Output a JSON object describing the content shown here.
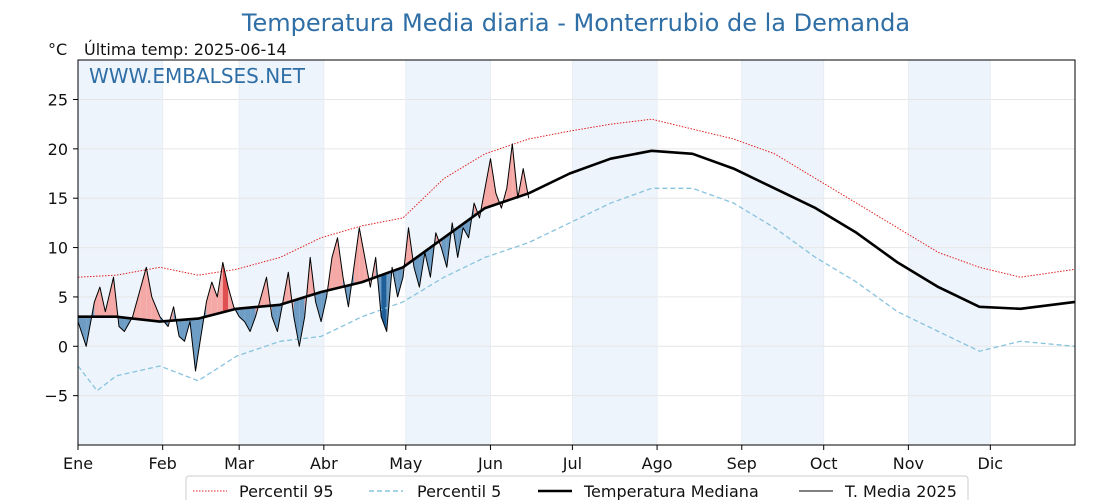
{
  "title": "Temperatura Media diaria - Monterrubio de la Demanda",
  "unit_label": "°C",
  "last_temp": "Última temp: 2025-06-14",
  "watermark": "WWW.EMBALSES.NET",
  "legend": {
    "p95": "Percentil 95",
    "p5": "Percentil 5",
    "median": "Temperatura Mediana",
    "current": "T. Media 2025"
  },
  "chart_data": {
    "type": "line",
    "x": {
      "label": "",
      "ticks": [
        "Ene",
        "Feb",
        "Mar",
        "Abr",
        "May",
        "Jun",
        "Jul",
        "Ago",
        "Sep",
        "Oct",
        "Nov",
        "Dic"
      ],
      "tick_days": [
        1,
        32,
        60,
        91,
        121,
        152,
        182,
        213,
        244,
        274,
        305,
        335
      ],
      "range_days": [
        1,
        366
      ]
    },
    "y": {
      "label": "",
      "ticks": [
        -5,
        0,
        5,
        10,
        15,
        20,
        25
      ],
      "tick_labels": [
        "−5",
        "0",
        "5",
        "10",
        "15",
        "20",
        "25"
      ],
      "lim": [
        -10,
        29
      ]
    },
    "grid": true,
    "legend_position": "bottom-center",
    "shaded_month_bands": [
      "Ene",
      "Mar",
      "May",
      "Jul",
      "Sep",
      "Nov"
    ],
    "colors": {
      "p95": "#e02020",
      "p5": "#88c3de",
      "median": "#000000",
      "current": "#000000",
      "above_fill": "#f4a9a6",
      "above_fill_strong": "#e05050",
      "below_fill": "#6d9dc5",
      "below_fill_strong": "#1f5f99",
      "band": "#eef4fb"
    },
    "series": [
      {
        "name": "Percentil 95",
        "style": "dotted",
        "points": [
          [
            1,
            7.0
          ],
          [
            15,
            7.2
          ],
          [
            31,
            8.0
          ],
          [
            45,
            7.2
          ],
          [
            59,
            7.8
          ],
          [
            75,
            9.0
          ],
          [
            90,
            11.0
          ],
          [
            105,
            12.2
          ],
          [
            120,
            13.0
          ],
          [
            135,
            17.0
          ],
          [
            150,
            19.5
          ],
          [
            166,
            21.0
          ],
          [
            181,
            21.8
          ],
          [
            196,
            22.5
          ],
          [
            211,
            23.0
          ],
          [
            226,
            22.0
          ],
          [
            241,
            21.0
          ],
          [
            256,
            19.5
          ],
          [
            271,
            17.0
          ],
          [
            286,
            14.5
          ],
          [
            301,
            12.0
          ],
          [
            316,
            9.5
          ],
          [
            331,
            8.0
          ],
          [
            346,
            7.0
          ],
          [
            366,
            7.8
          ]
        ]
      },
      {
        "name": "Percentil 5",
        "style": "dashed",
        "points": [
          [
            1,
            -2.0
          ],
          [
            8,
            -4.5
          ],
          [
            15,
            -3.0
          ],
          [
            31,
            -2.0
          ],
          [
            45,
            -3.5
          ],
          [
            59,
            -1.0
          ],
          [
            75,
            0.5
          ],
          [
            90,
            1.0
          ],
          [
            105,
            3.0
          ],
          [
            120,
            4.5
          ],
          [
            135,
            7.0
          ],
          [
            150,
            9.0
          ],
          [
            166,
            10.5
          ],
          [
            181,
            12.5
          ],
          [
            196,
            14.5
          ],
          [
            211,
            16.0
          ],
          [
            226,
            16.0
          ],
          [
            241,
            14.5
          ],
          [
            256,
            12.0
          ],
          [
            271,
            9.0
          ],
          [
            286,
            6.5
          ],
          [
            301,
            3.5
          ],
          [
            316,
            1.5
          ],
          [
            331,
            -0.5
          ],
          [
            346,
            0.5
          ],
          [
            366,
            0.0
          ]
        ]
      },
      {
        "name": "Temperatura Mediana",
        "style": "solid-thick",
        "points": [
          [
            1,
            3.0
          ],
          [
            15,
            3.0
          ],
          [
            31,
            2.5
          ],
          [
            45,
            2.8
          ],
          [
            59,
            3.8
          ],
          [
            75,
            4.2
          ],
          [
            90,
            5.5
          ],
          [
            105,
            6.5
          ],
          [
            120,
            8.0
          ],
          [
            135,
            11.0
          ],
          [
            150,
            14.0
          ],
          [
            166,
            15.5
          ],
          [
            181,
            17.5
          ],
          [
            196,
            19.0
          ],
          [
            211,
            19.8
          ],
          [
            226,
            19.5
          ],
          [
            241,
            18.0
          ],
          [
            256,
            16.0
          ],
          [
            271,
            14.0
          ],
          [
            286,
            11.5
          ],
          [
            301,
            8.5
          ],
          [
            316,
            6.0
          ],
          [
            331,
            4.0
          ],
          [
            346,
            3.8
          ],
          [
            366,
            4.5
          ]
        ]
      },
      {
        "name": "T. Media 2025",
        "style": "solid-thin",
        "points": [
          [
            1,
            2.5
          ],
          [
            4,
            0.0
          ],
          [
            7,
            4.5
          ],
          [
            9,
            6.0
          ],
          [
            11,
            3.5
          ],
          [
            14,
            7.0
          ],
          [
            16,
            2.0
          ],
          [
            18,
            1.5
          ],
          [
            21,
            3.0
          ],
          [
            24,
            6.0
          ],
          [
            26,
            8.0
          ],
          [
            28,
            5.0
          ],
          [
            31,
            3.0
          ],
          [
            34,
            2.0
          ],
          [
            36,
            4.0
          ],
          [
            38,
            1.0
          ],
          [
            40,
            0.5
          ],
          [
            42,
            2.5
          ],
          [
            44,
            -2.5
          ],
          [
            46,
            1.0
          ],
          [
            48,
            4.5
          ],
          [
            50,
            6.5
          ],
          [
            52,
            5.0
          ],
          [
            54,
            8.5
          ],
          [
            56,
            6.0
          ],
          [
            58,
            4.0
          ],
          [
            60,
            3.0
          ],
          [
            62,
            2.5
          ],
          [
            64,
            1.5
          ],
          [
            66,
            3.0
          ],
          [
            68,
            5.0
          ],
          [
            70,
            7.0
          ],
          [
            72,
            3.0
          ],
          [
            74,
            1.5
          ],
          [
            76,
            4.5
          ],
          [
            78,
            7.5
          ],
          [
            80,
            3.0
          ],
          [
            82,
            0.0
          ],
          [
            84,
            3.0
          ],
          [
            86,
            9.0
          ],
          [
            88,
            4.5
          ],
          [
            90,
            2.5
          ],
          [
            92,
            5.0
          ],
          [
            94,
            9.0
          ],
          [
            96,
            11.0
          ],
          [
            98,
            7.0
          ],
          [
            100,
            4.0
          ],
          [
            102,
            8.0
          ],
          [
            104,
            12.0
          ],
          [
            106,
            9.0
          ],
          [
            108,
            6.0
          ],
          [
            110,
            9.0
          ],
          [
            112,
            3.0
          ],
          [
            114,
            1.5
          ],
          [
            116,
            8.0
          ],
          [
            118,
            5.0
          ],
          [
            120,
            7.0
          ],
          [
            122,
            12.0
          ],
          [
            124,
            8.0
          ],
          [
            126,
            6.0
          ],
          [
            128,
            9.5
          ],
          [
            130,
            7.0
          ],
          [
            132,
            11.5
          ],
          [
            134,
            10.0
          ],
          [
            136,
            8.0
          ],
          [
            138,
            12.5
          ],
          [
            140,
            9.0
          ],
          [
            142,
            12.0
          ],
          [
            144,
            11.0
          ],
          [
            146,
            14.5
          ],
          [
            148,
            13.0
          ],
          [
            150,
            16.0
          ],
          [
            152,
            19.0
          ],
          [
            154,
            15.5
          ],
          [
            156,
            14.0
          ],
          [
            158,
            16.0
          ],
          [
            160,
            20.5
          ],
          [
            162,
            15.0
          ],
          [
            164,
            18.0
          ],
          [
            166,
            15.0
          ]
        ]
      }
    ]
  }
}
